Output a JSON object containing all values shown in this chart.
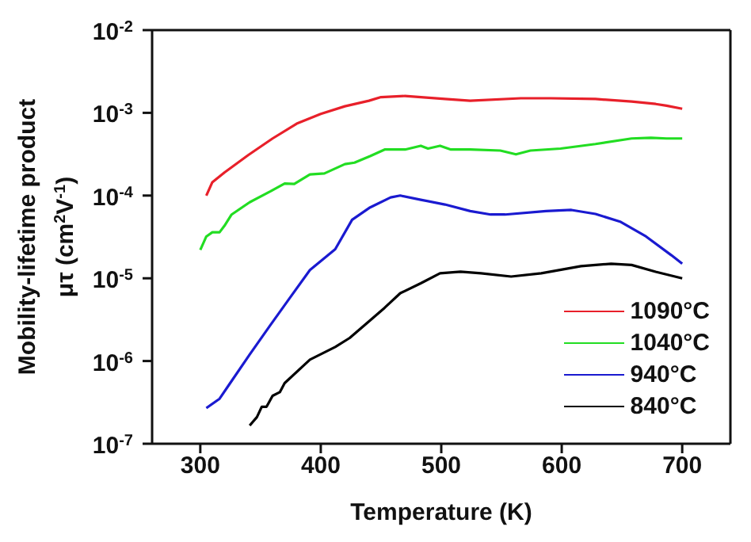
{
  "chart_data": {
    "type": "line",
    "xlabel": "Temperature (K)",
    "ylabel": "Mobility-lifetime product\nμτ (cm$^{2}$V$^{-1}$)",
    "log": "y",
    "xlim": [
      260,
      740
    ],
    "xticks": [
      300,
      400,
      500,
      600,
      700
    ],
    "ylim": [
      1e-07,
      0.01
    ],
    "yticks": [
      {
        "value": 1e-07,
        "label": "10$^{-7}$"
      },
      {
        "value": 1e-06,
        "label": "10$^{-6}$"
      },
      {
        "value": 1e-05,
        "label": "10$^{-5}$"
      },
      {
        "value": 0.0001,
        "label": "10$^{-4}$"
      },
      {
        "value": 0.001,
        "label": "10$^{-3}$"
      },
      {
        "value": 0.01,
        "label": "10$^{-2}$"
      }
    ],
    "legend": "bottom right",
    "series": [
      {
        "name": "1090°C",
        "color": "#e8202a",
        "x": [
          305,
          310,
          320,
          340,
          360,
          380,
          400,
          420,
          440,
          450,
          470,
          503,
          524,
          566,
          591,
          628,
          658,
          678,
          687,
          700
        ],
        "values": [
          0.0001,
          0.000145,
          0.00019,
          0.00031,
          0.00049,
          0.00074,
          0.00097,
          0.0012,
          0.0014,
          0.00155,
          0.0016,
          0.00147,
          0.0014,
          0.0015,
          0.0015,
          0.00147,
          0.00137,
          0.00128,
          0.00122,
          0.00112
        ]
      },
      {
        "name": "1040°C",
        "color": "#22dd22",
        "x": [
          300,
          305,
          310,
          316,
          320,
          326,
          341,
          358,
          370,
          378,
          391,
          403,
          420,
          428,
          441,
          453,
          470,
          483,
          489,
          499,
          508,
          524,
          549,
          562,
          574,
          599,
          628,
          658,
          674,
          687,
          700
        ],
        "values": [
          2.2e-05,
          3.2e-05,
          3.6e-05,
          3.6e-05,
          4.3e-05,
          5.9e-05,
          8.3e-05,
          0.000112,
          0.00014,
          0.000138,
          0.00018,
          0.000185,
          0.00024,
          0.00025,
          0.0003,
          0.00036,
          0.00036,
          0.0004,
          0.00037,
          0.0004,
          0.00036,
          0.00036,
          0.00035,
          0.000315,
          0.00035,
          0.00037,
          0.00042,
          0.00049,
          0.0005,
          0.00049,
          0.00049
        ]
      },
      {
        "name": "940°C",
        "color": "#1a1ad0",
        "x": [
          305,
          316,
          324,
          341,
          358,
          374,
          391,
          412,
          426,
          441,
          458,
          466,
          483,
          503,
          524,
          541,
          553,
          587,
          608,
          628,
          649,
          670,
          691,
          700
        ],
        "values": [
          2.7e-07,
          3.5e-07,
          5.2e-07,
          1.2e-06,
          2.7e-06,
          5.7e-06,
          1.26e-05,
          2.25e-05,
          5.1e-05,
          7.2e-05,
          9.5e-05,
          0.0001,
          8.9e-05,
          7.8e-05,
          6.5e-05,
          5.9e-05,
          5.9e-05,
          6.5e-05,
          6.7e-05,
          6e-05,
          4.8e-05,
          3.2e-05,
          1.9e-05,
          1.5e-05
        ]
      },
      {
        "name": "840°C",
        "color": "#000000",
        "x": [
          341,
          347,
          351,
          355,
          360,
          366,
          370,
          391,
          412,
          424,
          441,
          453,
          466,
          483,
          499,
          516,
          533,
          558,
          583,
          616,
          641,
          658,
          678,
          700
        ],
        "values": [
          1.66e-07,
          2.1e-07,
          2.8e-07,
          2.8e-07,
          3.8e-07,
          4.2e-07,
          5.4e-07,
          1.04e-06,
          1.48e-06,
          1.9e-06,
          3.1e-06,
          4.4e-06,
          6.6e-06,
          8.7e-06,
          1.15e-05,
          1.2e-05,
          1.15e-05,
          1.05e-05,
          1.15e-05,
          1.4e-05,
          1.5e-05,
          1.45e-05,
          1.2e-05,
          1e-05
        ]
      }
    ]
  }
}
